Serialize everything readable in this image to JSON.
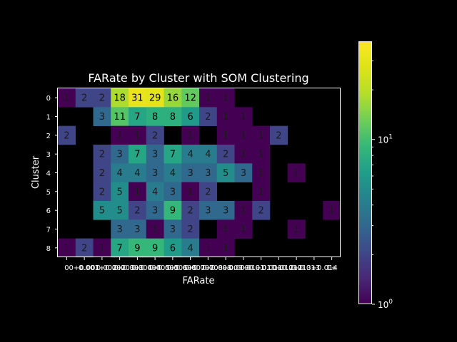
{
  "chart_data": {
    "type": "heatmap",
    "title": "FARate by Cluster with SOM Clustering",
    "xlabel": "FARate",
    "ylabel": "Cluster",
    "x_tick_labels": [
      "0",
      "0+0.001",
      "0.001+0.002",
      "0.002+0.003",
      "0.003+0.004",
      "0.004+0.005",
      "0.005+0.006",
      "0.006+0.007",
      "0.007+0.008",
      "0.008+0.009",
      "0.009+0.01",
      "0.01+0.011",
      "0.011+0.012",
      "0.012+0.013",
      "0.013+0.014",
      "1+"
    ],
    "y_tick_labels": [
      "0",
      "1",
      "2",
      "3",
      "4",
      "5",
      "6",
      "7",
      "8"
    ],
    "colorscale": "viridis",
    "color_scale_type": "log",
    "color_range": [
      1,
      39
    ],
    "colorbar_ticks": [
      {
        "value": 1,
        "base": "10",
        "exp": "0"
      },
      {
        "value": 10,
        "base": "10",
        "exp": "1"
      }
    ],
    "missing_color": "#000000",
    "values": [
      [
        1,
        2,
        2,
        18,
        31,
        29,
        16,
        12,
        1,
        1,
        null,
        null,
        null,
        null,
        null,
        null
      ],
      [
        null,
        null,
        3,
        11,
        7,
        8,
        8,
        6,
        2,
        1,
        1,
        null,
        null,
        null,
        null,
        null
      ],
      [
        2,
        null,
        null,
        1,
        1,
        2,
        null,
        1,
        null,
        1,
        1,
        1,
        2,
        null,
        null,
        null
      ],
      [
        null,
        null,
        2,
        3,
        7,
        3,
        7,
        4,
        4,
        2,
        1,
        1,
        null,
        null,
        null,
        null
      ],
      [
        null,
        null,
        2,
        4,
        4,
        3,
        4,
        3,
        3,
        5,
        3,
        1,
        null,
        1,
        null,
        null
      ],
      [
        null,
        null,
        2,
        5,
        1,
        4,
        3,
        1,
        2,
        null,
        null,
        1,
        null,
        null,
        null,
        null
      ],
      [
        null,
        null,
        5,
        5,
        2,
        3,
        9,
        2,
        3,
        3,
        1,
        2,
        null,
        null,
        null,
        1
      ],
      [
        null,
        null,
        null,
        3,
        3,
        1,
        3,
        2,
        null,
        1,
        1,
        null,
        null,
        1,
        null,
        null
      ],
      [
        1,
        2,
        1,
        7,
        9,
        9,
        6,
        4,
        1,
        1,
        null,
        null,
        null,
        null,
        null,
        null
      ]
    ]
  }
}
